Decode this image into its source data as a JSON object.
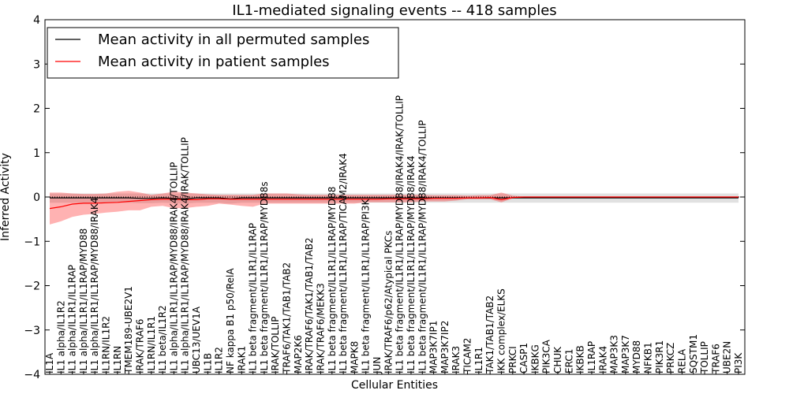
{
  "chart_data": {
    "type": "line",
    "title": "IL1-mediated signaling events -- 418 samples",
    "xlabel": "Cellular Entities",
    "ylabel": "Inferred Activity",
    "ylim": [
      -4,
      4
    ],
    "yticks": [
      -4,
      -3,
      -2,
      -1,
      0,
      1,
      2,
      3,
      4
    ],
    "legend_position": "top-left",
    "categories": [
      "IL1A",
      "IL1 alpha/IL1R2",
      "IL1 alpha/IL1R1/IL1RAP",
      "IL1 alpha/IL1R1/IL1RAP/MYD88",
      "IL1 alpha/IL1R1/IL1RAP/MYD88/IRAK4",
      "IL1RN/IL1R2",
      "IL1RN",
      "TMEM189-UBE2V1",
      "IRAK/TRAF6",
      "IL1RN/IL1R1",
      "IL1 beta/IL1R2",
      "IL1 alpha/IL1R1/IL1RAP/MYD88/IRAK4/TOLLIP",
      "IL1 alpha/IL1R1/IL1RAP/MYD88/IRAK4/IRAK/TOLLIP",
      "UBC13/UEV1A",
      "IL1B",
      "IL1R2",
      "NF kappa B1 p50/RelA",
      "IRAK1",
      "IL1 beta fragment/IL1R1/IL1RAP",
      "IL1 beta fragment/IL1R1/IL1RAP/MYD88s",
      "IRAK/TOLLIP",
      "TRAF6/TAK1/TAB1/TAB2",
      "MAP2K6",
      "IRAK/TRAF6/TAK1/TAB1/TAB2",
      "IRAK/TRAF6/MEKK3",
      "IL1 beta fragment/IL1R1/IL1RAP/MYD88",
      "IL1 beta fragment/IL1R1/IL1RAP/TICAM2/IRAK4",
      "MAPK8",
      "IL1 beta fragment/IL1R1/IL1RAP/PI3K",
      "JUN",
      "IRAK/TRAF6/p62/Atypical PKCs",
      "IL1 beta fragment/IL1R1/IL1RAP/MYD88/IRAK4/IRAK/TOLLIP",
      "IL1 beta fragment/IL1R1/IL1RAP/MYD88/IRAK4",
      "IL1 beta fragment/IL1R1/IL1RAP/MYD88/IRAK4/TOLLIP",
      "MAP3K7IP1",
      "MAP3K7IP2",
      "IRAK3",
      "TICAM2",
      "IL1R1",
      "TAK1/TAB1/TAB2",
      "IKK complex/ELKS",
      "PRKCI",
      "CASP1",
      "IKBKG",
      "PIK3CA",
      "CHUK",
      "ERC1",
      "IKBKB",
      "IL1RAP",
      "IRAK4",
      "MAP3K3",
      "MAP3K7",
      "MYD88",
      "NFKB1",
      "PIK3R1",
      "PRKCZ",
      "RELA",
      "SQSTM1",
      "TOLLIP",
      "TRAF6",
      "UBE2N",
      "PI3K"
    ],
    "series": [
      {
        "name": "Mean activity in all permuted samples",
        "color": "#000000",
        "values": [
          -0.02,
          -0.02,
          -0.02,
          -0.02,
          -0.02,
          -0.02,
          -0.02,
          -0.02,
          -0.03,
          -0.03,
          -0.02,
          -0.03,
          -0.04,
          -0.02,
          -0.02,
          -0.02,
          -0.04,
          -0.02,
          -0.02,
          -0.02,
          -0.02,
          -0.02,
          -0.02,
          -0.02,
          -0.02,
          -0.02,
          -0.02,
          -0.02,
          -0.02,
          -0.02,
          -0.02,
          -0.02,
          -0.02,
          -0.02,
          -0.02,
          -0.02,
          -0.02,
          -0.02,
          -0.02,
          -0.02,
          -0.02,
          -0.02,
          -0.02,
          -0.02,
          -0.02,
          -0.02,
          -0.02,
          -0.02,
          -0.02,
          -0.02,
          -0.02,
          -0.02,
          -0.02,
          -0.02,
          -0.02,
          -0.02,
          -0.02,
          -0.02,
          -0.02,
          -0.02,
          -0.02,
          -0.02
        ],
        "band_upper": [
          0.08,
          0.08,
          0.08,
          0.08,
          0.08,
          0.08,
          0.08,
          0.08,
          0.08,
          0.08,
          0.08,
          0.08,
          0.08,
          0.08,
          0.08,
          0.08,
          0.08,
          0.08,
          0.08,
          0.08,
          0.08,
          0.08,
          0.08,
          0.08,
          0.08,
          0.08,
          0.08,
          0.08,
          0.08,
          0.08,
          0.08,
          0.08,
          0.08,
          0.08,
          0.08,
          0.08,
          0.08,
          0.08,
          0.08,
          0.08,
          0.08,
          0.08,
          0.08,
          0.08,
          0.08,
          0.08,
          0.08,
          0.08,
          0.08,
          0.08,
          0.08,
          0.08,
          0.08,
          0.08,
          0.08,
          0.08,
          0.08,
          0.08,
          0.08,
          0.08,
          0.08,
          0.08
        ],
        "band_lower": [
          -0.13,
          -0.13,
          -0.13,
          -0.13,
          -0.13,
          -0.13,
          -0.13,
          -0.13,
          -0.14,
          -0.14,
          -0.13,
          -0.14,
          -0.15,
          -0.13,
          -0.13,
          -0.13,
          -0.15,
          -0.13,
          -0.13,
          -0.13,
          -0.13,
          -0.13,
          -0.13,
          -0.13,
          -0.13,
          -0.13,
          -0.13,
          -0.13,
          -0.13,
          -0.13,
          -0.13,
          -0.13,
          -0.13,
          -0.13,
          -0.13,
          -0.13,
          -0.13,
          -0.13,
          -0.13,
          -0.13,
          -0.13,
          -0.13,
          -0.13,
          -0.13,
          -0.13,
          -0.13,
          -0.13,
          -0.13,
          -0.13,
          -0.13,
          -0.13,
          -0.13,
          -0.13,
          -0.13,
          -0.13,
          -0.13,
          -0.13,
          -0.13,
          -0.13,
          -0.13,
          -0.13,
          -0.13
        ]
      },
      {
        "name": "Mean activity in patient samples",
        "color": "#ff0000",
        "values": [
          -0.26,
          -0.22,
          -0.16,
          -0.14,
          -0.14,
          -0.13,
          -0.12,
          -0.1,
          -0.08,
          -0.06,
          -0.05,
          -0.05,
          -0.06,
          -0.06,
          -0.04,
          -0.04,
          -0.05,
          -0.05,
          -0.05,
          -0.05,
          -0.05,
          -0.05,
          -0.05,
          -0.05,
          -0.05,
          -0.05,
          -0.05,
          -0.05,
          -0.05,
          -0.05,
          -0.04,
          -0.04,
          -0.04,
          -0.04,
          -0.03,
          -0.03,
          -0.03,
          -0.02,
          -0.02,
          -0.01,
          -0.06,
          -0.01,
          0.0,
          0.0,
          0.0,
          0.0,
          0.0,
          0.0,
          0.0,
          0.0,
          0.0,
          0.0,
          0.0,
          0.0,
          0.0,
          0.0,
          0.0,
          0.0,
          0.0,
          0.0,
          0.0,
          0.0
        ],
        "band_upper": [
          0.1,
          0.1,
          0.08,
          0.07,
          0.07,
          0.08,
          0.12,
          0.14,
          0.1,
          0.05,
          0.08,
          0.12,
          0.1,
          0.08,
          0.06,
          0.05,
          0.05,
          0.05,
          0.05,
          0.08,
          0.08,
          0.08,
          0.06,
          0.05,
          0.05,
          0.05,
          0.05,
          0.05,
          0.05,
          0.05,
          0.05,
          0.05,
          0.05,
          0.05,
          0.04,
          0.04,
          0.04,
          0.03,
          0.04,
          0.04,
          0.1,
          0.03,
          0.01,
          0.01,
          0.01,
          0.01,
          0.01,
          0.01,
          0.01,
          0.01,
          0.01,
          0.01,
          0.01,
          0.01,
          0.01,
          0.01,
          0.01,
          0.01,
          0.01,
          0.01,
          0.01,
          0.01
        ],
        "band_lower": [
          -0.62,
          -0.55,
          -0.45,
          -0.4,
          -0.38,
          -0.35,
          -0.33,
          -0.3,
          -0.3,
          -0.22,
          -0.2,
          -0.25,
          -0.25,
          -0.22,
          -0.2,
          -0.15,
          -0.17,
          -0.2,
          -0.22,
          -0.15,
          -0.15,
          -0.15,
          -0.15,
          -0.15,
          -0.15,
          -0.15,
          -0.15,
          -0.15,
          -0.12,
          -0.12,
          -0.12,
          -0.12,
          -0.12,
          -0.1,
          -0.1,
          -0.1,
          -0.08,
          -0.05,
          -0.05,
          -0.05,
          -0.12,
          -0.03,
          -0.01,
          -0.01,
          -0.01,
          -0.01,
          -0.01,
          -0.01,
          -0.01,
          -0.01,
          -0.01,
          -0.01,
          -0.01,
          -0.01,
          -0.01,
          -0.01,
          -0.01,
          -0.01,
          -0.01,
          -0.01,
          -0.01,
          -0.01
        ]
      }
    ]
  }
}
